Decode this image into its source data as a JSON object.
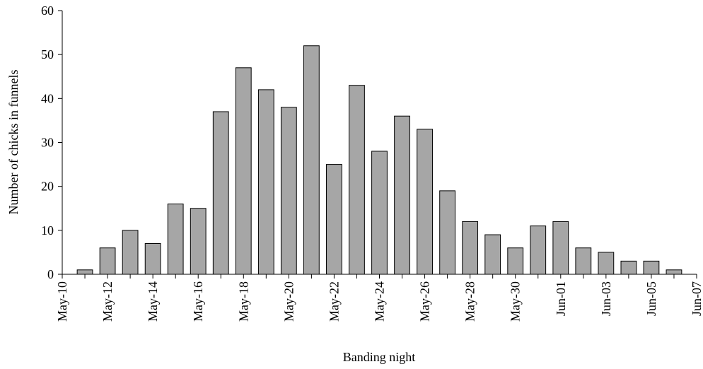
{
  "chart_data": {
    "type": "bar",
    "x_label": "Banding night",
    "y_label": "Number of chicks in funnels",
    "categories": [
      "May-10",
      null,
      "May-12",
      null,
      "May-14",
      null,
      "May-16",
      null,
      "May-18",
      null,
      "May-20",
      null,
      "May-22",
      null,
      "May-24",
      null,
      "May-26",
      null,
      "May-28",
      null,
      "May-30",
      null,
      "Jun-01",
      null,
      "Jun-03",
      null,
      "Jun-05",
      null,
      "Jun-07"
    ],
    "values": [
      null,
      1,
      6,
      10,
      7,
      16,
      15,
      37,
      47,
      42,
      38,
      52,
      25,
      43,
      28,
      36,
      33,
      19,
      12,
      9,
      6,
      11,
      12,
      6,
      5,
      3,
      3,
      1,
      null
    ],
    "color": "#a6a6a6",
    "ylim": [
      0,
      60
    ],
    "yticks": [
      0,
      10,
      20,
      30,
      40,
      50,
      60
    ],
    "grid": false
  }
}
